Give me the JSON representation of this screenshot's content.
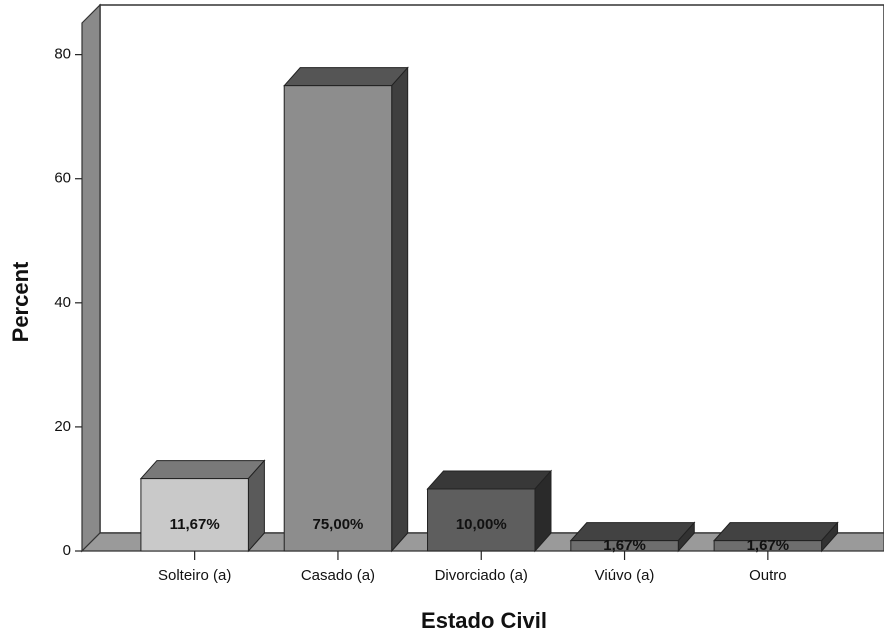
{
  "chart_data": {
    "type": "bar3d",
    "x_label": "Estado Civil",
    "y_label": "Percent",
    "categories": [
      "Solteiro (a)",
      "Casado (a)",
      "Divorciado (a)",
      "Viúvo (a)",
      "Outro"
    ],
    "values": [
      11.67,
      75,
      10,
      1.67,
      1.67
    ],
    "value_labels": [
      "11,67%",
      "75,00%",
      "10,00%",
      "1,67%",
      "1,67%"
    ],
    "colors": [
      "#c9c9c9",
      "#8d8d8d",
      "#5e5e5e",
      "#6e6e6e",
      "#6e6e6e"
    ],
    "ylim": [
      0,
      88
    ],
    "yticks": [
      0,
      20,
      40,
      60,
      80
    ]
  }
}
